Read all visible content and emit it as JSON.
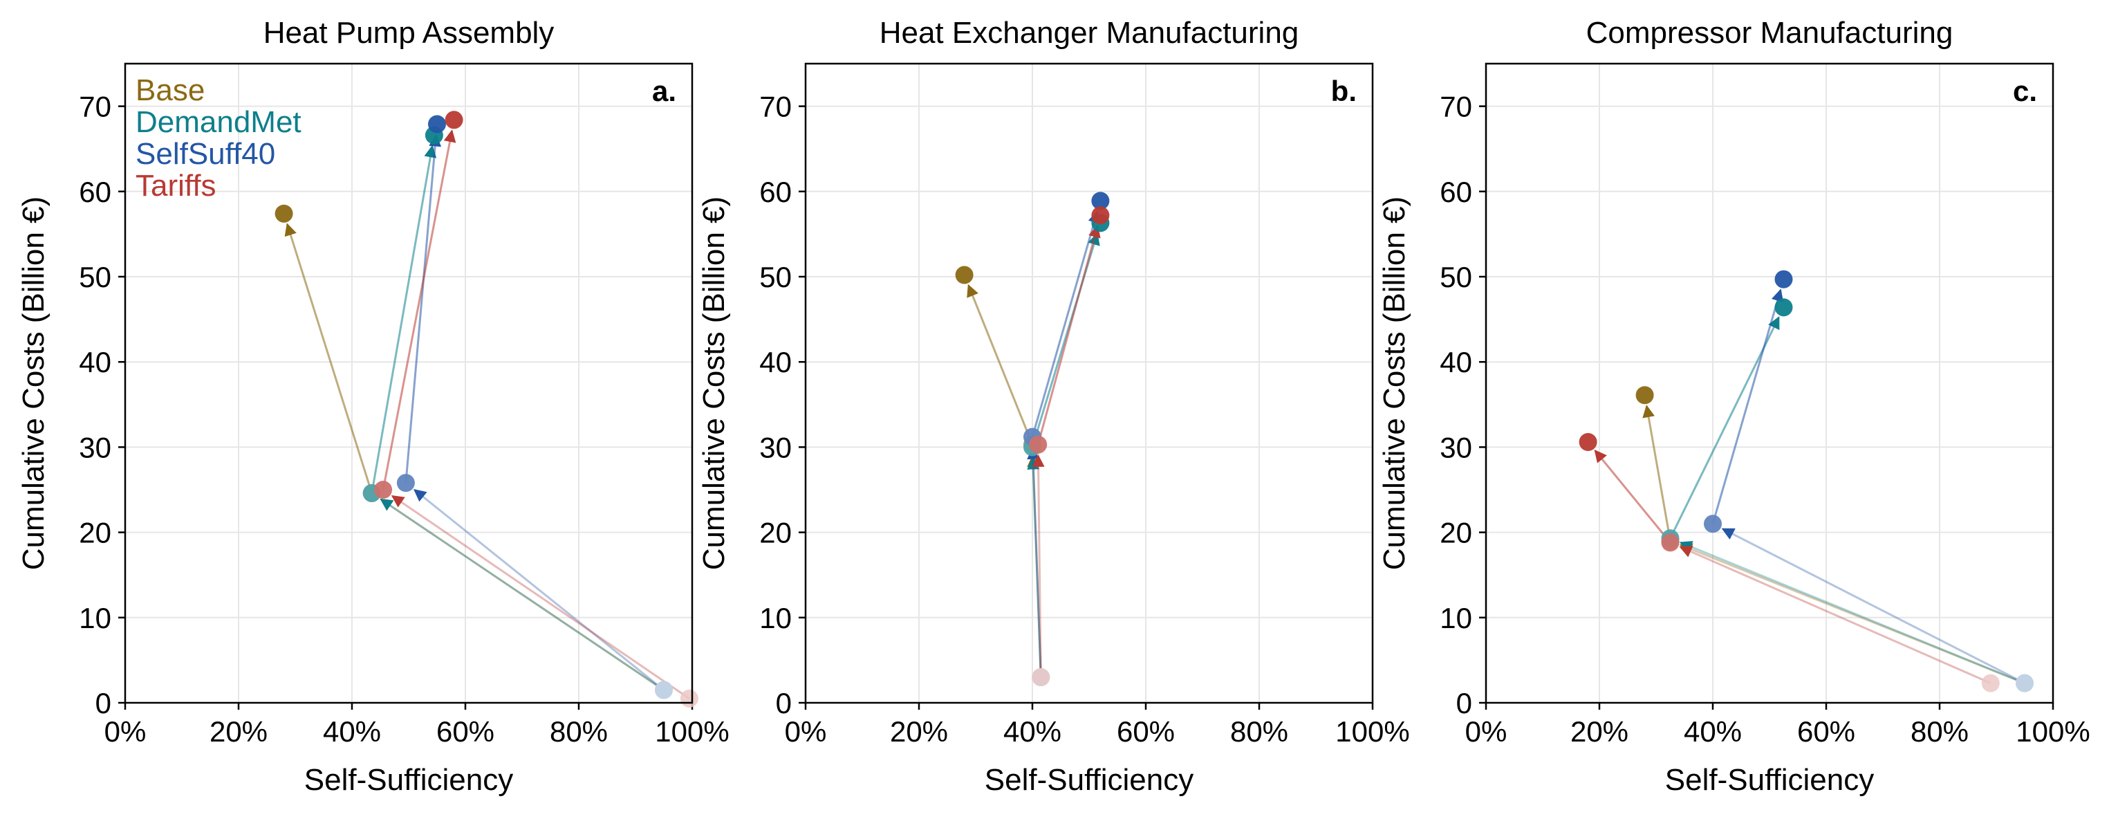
{
  "chart_data": [
    {
      "type": "scatter",
      "title": "Heat Pump Assembly",
      "panel_tag": "a.",
      "xlabel": "Self-Sufficiency",
      "ylabel": "Cumulative Costs (Billion €)",
      "xlim": [
        0,
        1
      ],
      "ylim": [
        0,
        75
      ],
      "xticks": [
        0,
        0.2,
        0.4,
        0.6,
        0.8,
        1.0
      ],
      "xtick_labels": [
        "0%",
        "20%",
        "40%",
        "60%",
        "80%",
        "100%"
      ],
      "yticks": [
        0,
        10,
        20,
        30,
        40,
        50,
        60,
        70
      ],
      "ytick_labels": [
        "0",
        "10",
        "20",
        "30",
        "40",
        "50",
        "60",
        "70"
      ],
      "grid": true,
      "legend": {
        "placement": "top-left",
        "entries": [
          {
            "label": "Base",
            "color": "#8b6914"
          },
          {
            "label": "DemandMet",
            "color": "#0e7f8c"
          },
          {
            "label": "SelfSuff40",
            "color": "#2456a6"
          },
          {
            "label": "Tariffs",
            "color": "#b83a33"
          }
        ]
      },
      "series": [
        {
          "name": "Base",
          "color": "#8b6914",
          "points": [
            [
              0.95,
              1.5
            ],
            [
              0.435,
              24.6
            ],
            [
              0.28,
              57.4
            ]
          ]
        },
        {
          "name": "DemandMet",
          "color": "#0e7f8c",
          "points": [
            [
              0.95,
              1.5
            ],
            [
              0.435,
              24.6
            ],
            [
              0.545,
              66.6
            ]
          ]
        },
        {
          "name": "SelfSuff40",
          "color": "#2456a6",
          "points": [
            [
              0.95,
              1.5
            ],
            [
              0.495,
              25.8
            ],
            [
              0.55,
              67.9
            ]
          ]
        },
        {
          "name": "Tariffs",
          "color": "#b83a33",
          "points": [
            [
              0.995,
              0.5
            ],
            [
              0.455,
              25.0
            ],
            [
              0.58,
              68.4
            ]
          ]
        }
      ]
    },
    {
      "type": "scatter",
      "title": "Heat Exchanger Manufacturing",
      "panel_tag": "b.",
      "xlabel": "Self-Sufficiency",
      "ylabel": "Cumulative Costs (Billion €)",
      "xlim": [
        0,
        1
      ],
      "ylim": [
        0,
        75
      ],
      "xticks": [
        0,
        0.2,
        0.4,
        0.6,
        0.8,
        1.0
      ],
      "xtick_labels": [
        "0%",
        "20%",
        "40%",
        "60%",
        "80%",
        "100%"
      ],
      "yticks": [
        0,
        10,
        20,
        30,
        40,
        50,
        60,
        70
      ],
      "ytick_labels": [
        "0",
        "10",
        "20",
        "30",
        "40",
        "50",
        "60",
        "70"
      ],
      "grid": true,
      "series": [
        {
          "name": "Base",
          "color": "#8b6914",
          "points": [
            [
              0.415,
              3.0
            ],
            [
              0.4,
              30.3
            ],
            [
              0.28,
              50.2
            ]
          ]
        },
        {
          "name": "DemandMet",
          "color": "#0e7f8c",
          "points": [
            [
              0.415,
              3.0
            ],
            [
              0.4,
              30.0
            ],
            [
              0.52,
              56.3
            ]
          ]
        },
        {
          "name": "SelfSuff40",
          "color": "#2456a6",
          "points": [
            [
              0.415,
              3.0
            ],
            [
              0.4,
              31.2
            ],
            [
              0.52,
              58.9
            ]
          ]
        },
        {
          "name": "Tariffs",
          "color": "#b83a33",
          "points": [
            [
              0.415,
              3.0
            ],
            [
              0.41,
              30.3
            ],
            [
              0.52,
              57.2
            ]
          ]
        }
      ]
    },
    {
      "type": "scatter",
      "title": "Compressor Manufacturing",
      "panel_tag": "c.",
      "xlabel": "Self-Sufficiency",
      "ylabel": "Cumulative Costs (Billion €)",
      "xlim": [
        0,
        1
      ],
      "ylim": [
        0,
        75
      ],
      "xticks": [
        0,
        0.2,
        0.4,
        0.6,
        0.8,
        1.0
      ],
      "xtick_labels": [
        "0%",
        "20%",
        "40%",
        "60%",
        "80%",
        "100%"
      ],
      "yticks": [
        0,
        10,
        20,
        30,
        40,
        50,
        60,
        70
      ],
      "ytick_labels": [
        "0",
        "10",
        "20",
        "30",
        "40",
        "50",
        "60",
        "70"
      ],
      "grid": true,
      "series": [
        {
          "name": "Base",
          "color": "#8b6914",
          "points": [
            [
              0.95,
              2.3
            ],
            [
              0.325,
              19.0
            ],
            [
              0.28,
              36.1
            ]
          ]
        },
        {
          "name": "DemandMet",
          "color": "#0e7f8c",
          "points": [
            [
              0.95,
              2.3
            ],
            [
              0.325,
              19.3
            ],
            [
              0.525,
              46.4
            ]
          ]
        },
        {
          "name": "SelfSuff40",
          "color": "#2456a6",
          "points": [
            [
              0.95,
              2.3
            ],
            [
              0.4,
              21.0
            ],
            [
              0.525,
              49.7
            ]
          ]
        },
        {
          "name": "Tariffs",
          "color": "#b83a33",
          "points": [
            [
              0.89,
              2.3
            ],
            [
              0.325,
              18.8
            ],
            [
              0.18,
              30.6
            ]
          ]
        }
      ]
    }
  ]
}
